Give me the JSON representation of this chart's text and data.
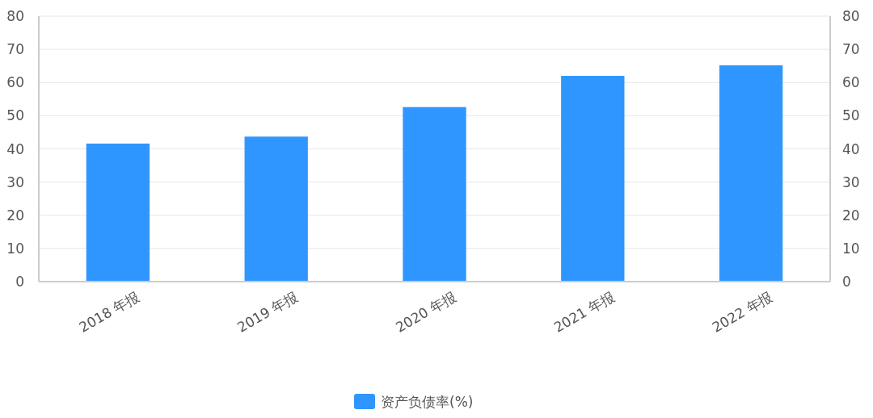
{
  "chart_data": {
    "type": "bar",
    "categories": [
      "2018 年报",
      "2019 年报",
      "2020 年报",
      "2021 年报",
      "2022 年报"
    ],
    "series": [
      {
        "name": "资产负债率(%)",
        "color": "#3096ff",
        "values": [
          41.6,
          43.7,
          52.6,
          62.0,
          65.2
        ]
      }
    ],
    "ylim": [
      0,
      80
    ],
    "yticks": [
      0,
      10,
      20,
      30,
      40,
      50,
      60,
      70,
      80
    ],
    "y2lim": [
      0,
      80
    ],
    "y2ticks": [
      0,
      10,
      20,
      30,
      40,
      50,
      60,
      70,
      80
    ],
    "grid": "y",
    "legend": "bottom"
  }
}
